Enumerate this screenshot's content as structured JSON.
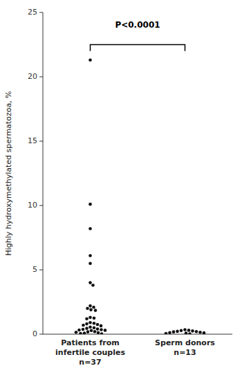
{
  "chart_data": {
    "type": "strip",
    "categories": [
      "Patients from\ninfertile couples\nn=37",
      "Sperm donors\nn=13"
    ],
    "values": [
      [
        21.3,
        10.1,
        8.2,
        6.1,
        5.5,
        4.0,
        3.8,
        2.2,
        2.1,
        2.0,
        1.9,
        1.85,
        1.3,
        1.25,
        1.2,
        0.9,
        0.85,
        0.8,
        0.75,
        0.7,
        0.65,
        0.55,
        0.5,
        0.45,
        0.4,
        0.38,
        0.35,
        0.32,
        0.3,
        0.28,
        0.2,
        0.18,
        0.15,
        0.12,
        0.08,
        0.05,
        0.02
      ],
      [
        0.35,
        0.3,
        0.28,
        0.25,
        0.22,
        0.2,
        0.18,
        0.15,
        0.12,
        0.1,
        0.08,
        0.05,
        0.03
      ]
    ],
    "color": "#111111",
    "ylabel": "Highly hydroxymethylated spermatozoa, %",
    "ylim": [
      0,
      25
    ],
    "yticks": [
      0,
      5,
      10,
      15,
      20,
      25
    ],
    "annotations": [
      {
        "text": "P<0.0001",
        "y": 22.5,
        "text_y": 23.8,
        "tick_len": 0.5
      }
    ]
  }
}
